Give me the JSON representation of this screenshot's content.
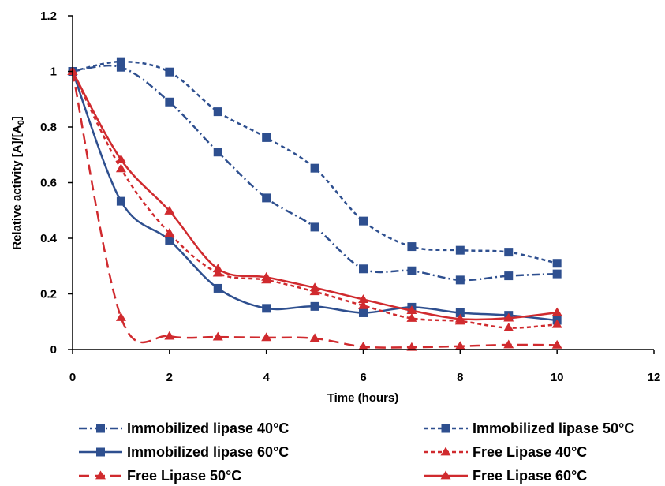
{
  "chart_data": {
    "type": "line",
    "title": "",
    "xlabel": "Time (hours)",
    "ylabel": "Relative activity  [A]/[A",
    "ylabel_subscript": "0",
    "ylabel_suffix": "]",
    "xlim": [
      0,
      12
    ],
    "ylim": [
      0,
      1.2
    ],
    "x_ticks": [
      "0",
      "2",
      "4",
      "6",
      "8",
      "10",
      "12"
    ],
    "y_ticks": [
      "0",
      "0.2",
      "0.4",
      "0.6",
      "0.8",
      "1",
      "1.2"
    ],
    "grid": false,
    "legend_position": "bottom",
    "series": [
      {
        "name": "Immobilized lipase 40°C",
        "color": "#2E4F8F",
        "marker": "square",
        "dash": "dashdot",
        "x": [
          0,
          1,
          2,
          3,
          4,
          5,
          6,
          7,
          8,
          9,
          10
        ],
        "values": [
          1.0,
          1.015,
          0.89,
          0.71,
          0.545,
          0.44,
          0.29,
          0.283,
          0.25,
          0.265,
          0.272
        ]
      },
      {
        "name": "Immobilized lipase 50°C",
        "color": "#2E4F8F",
        "marker": "square",
        "dash": "shortdash",
        "x": [
          0,
          1,
          2,
          3,
          4,
          5,
          6,
          7,
          8,
          9,
          10
        ],
        "values": [
          1.0,
          1.035,
          0.998,
          0.855,
          0.762,
          0.652,
          0.462,
          0.37,
          0.357,
          0.35,
          0.31
        ]
      },
      {
        "name": "Immobilized lipase 60°C",
        "color": "#2E4F8F",
        "marker": "square",
        "dash": "solid",
        "x": [
          0,
          1,
          2,
          3,
          4,
          5,
          6,
          7,
          8,
          9,
          10
        ],
        "values": [
          1.0,
          0.533,
          0.393,
          0.22,
          0.148,
          0.155,
          0.132,
          0.152,
          0.132,
          0.123,
          0.105
        ]
      },
      {
        "name": "Free Lipase 40°C",
        "color": "#D02A2E",
        "marker": "triangle",
        "dash": "shortdash",
        "x": [
          0,
          1,
          2,
          3,
          4,
          5,
          6,
          7,
          8,
          9,
          10
        ],
        "values": [
          1.0,
          0.65,
          0.418,
          0.275,
          0.25,
          0.208,
          0.158,
          0.112,
          0.102,
          0.078,
          0.09
        ]
      },
      {
        "name": "Free Lipase 50°C",
        "color": "#D02A2E",
        "marker": "triangle",
        "dash": "longdash",
        "x": [
          0,
          1,
          2,
          3,
          4,
          5,
          6,
          7,
          8,
          9,
          10
        ],
        "values": [
          1.0,
          0.115,
          0.048,
          0.045,
          0.043,
          0.04,
          0.01,
          0.008,
          0.012,
          0.017,
          0.016
        ]
      },
      {
        "name": "Free Lipase 60°C",
        "color": "#D02A2E",
        "marker": "triangle",
        "dash": "solid",
        "x": [
          0,
          1,
          2,
          3,
          4,
          5,
          6,
          7,
          8,
          9,
          10
        ],
        "values": [
          1.0,
          0.683,
          0.498,
          0.29,
          0.26,
          0.222,
          0.18,
          0.14,
          0.11,
          0.113,
          0.133
        ]
      }
    ]
  }
}
